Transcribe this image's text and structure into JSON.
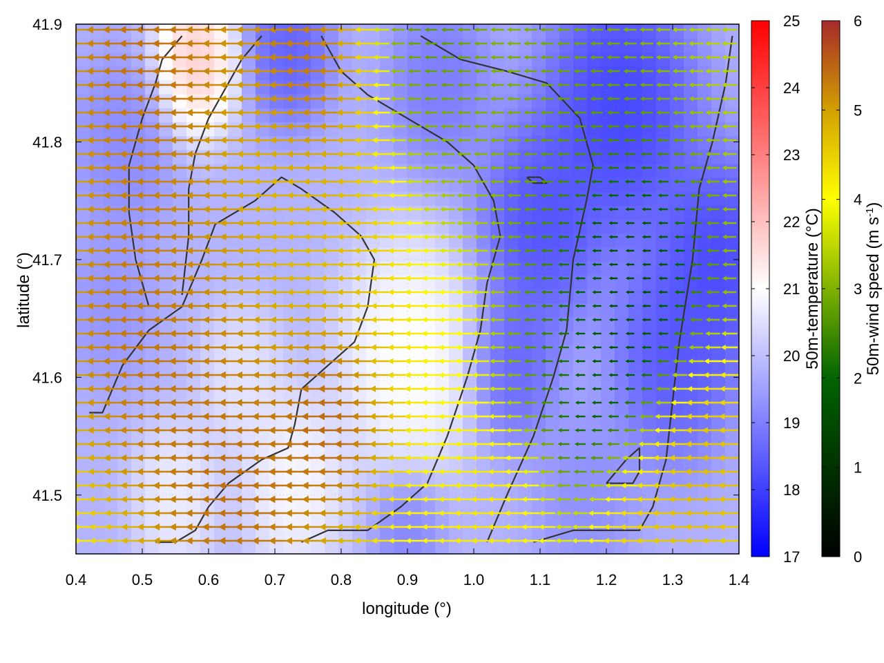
{
  "chart_data": {
    "type": "heatmap",
    "xlabel": "longitude (°)",
    "ylabel": "latitude (°)",
    "xlim": [
      0.4,
      1.4
    ],
    "ylim": [
      41.45,
      41.9
    ],
    "xticks": [
      0.4,
      0.5,
      0.6,
      0.7,
      0.8,
      0.9,
      1.0,
      1.1,
      1.2,
      1.3,
      1.4
    ],
    "xtick_labels": [
      "0.4",
      "0.5",
      "0.6",
      "0.7",
      "0.8",
      "0.9",
      "1.0",
      "1.1",
      "1.2",
      "1.3",
      "1.4"
    ],
    "yticks": [
      41.5,
      41.6,
      41.7,
      41.8,
      41.9
    ],
    "ytick_labels": [
      "41.5",
      "41.6",
      "41.7",
      "41.8",
      "41.9"
    ],
    "temperature_colorbar": {
      "label": "50m-temperature (°C)",
      "range": [
        17,
        25
      ],
      "ticks": [
        "17",
        "18",
        "19",
        "20",
        "21",
        "22",
        "23",
        "24",
        "25"
      ],
      "colors": [
        "#0000ff",
        "#ffffff",
        "#ff0000"
      ]
    },
    "wind_colorbar": {
      "label_main": "50m-wind speed (m s",
      "label_sup": "-1",
      "label_end": ")",
      "range": [
        0,
        6
      ],
      "ticks": [
        "0",
        "1",
        "2",
        "3",
        "4",
        "5",
        "6"
      ],
      "colors": [
        "#000000",
        "#006400",
        "#ffff00",
        "#d2a000",
        "#a52a2a"
      ]
    },
    "temperature_field": {
      "background": 19.8,
      "features": [
        {
          "lon": 1.22,
          "lat": 41.83,
          "t": 17.6,
          "r": 0.09
        },
        {
          "lon": 1.1,
          "lat": 41.73,
          "t": 17.9,
          "r": 0.07
        },
        {
          "lon": 1.37,
          "lat": 41.7,
          "t": 17.7,
          "r": 0.07
        },
        {
          "lon": 1.3,
          "lat": 41.62,
          "t": 18.0,
          "r": 0.07
        },
        {
          "lon": 1.06,
          "lat": 41.61,
          "t": 18.3,
          "r": 0.05
        },
        {
          "lon": 0.72,
          "lat": 41.88,
          "t": 18.2,
          "r": 0.05
        },
        {
          "lon": 0.95,
          "lat": 41.85,
          "t": 18.7,
          "r": 0.06
        },
        {
          "lon": 0.47,
          "lat": 41.8,
          "t": 19.0,
          "r": 0.06
        },
        {
          "lon": 0.45,
          "lat": 41.66,
          "t": 19.2,
          "r": 0.05
        },
        {
          "lon": 0.9,
          "lat": 41.47,
          "t": 18.9,
          "r": 0.04
        },
        {
          "lon": 1.17,
          "lat": 41.5,
          "t": 19.1,
          "r": 0.06
        },
        {
          "lon": 0.58,
          "lat": 41.87,
          "t": 22.3,
          "r": 0.05
        },
        {
          "lon": 0.9,
          "lat": 41.62,
          "t": 21.4,
          "r": 0.08
        },
        {
          "lon": 0.73,
          "lat": 41.51,
          "t": 21.2,
          "r": 0.06
        },
        {
          "lon": 0.55,
          "lat": 41.5,
          "t": 21.0,
          "r": 0.05
        },
        {
          "lon": 0.65,
          "lat": 41.6,
          "t": 20.8,
          "r": 0.05
        }
      ]
    },
    "wind_field": {
      "direction": "westward",
      "speed_regions": [
        {
          "lon": 0.52,
          "lat": 41.88,
          "speed": 5.9,
          "r": 0.14
        },
        {
          "lon": 0.76,
          "lat": 41.86,
          "speed": 5.9,
          "r": 0.08
        },
        {
          "lon": 0.5,
          "lat": 41.64,
          "speed": 5.7,
          "r": 0.12
        },
        {
          "lon": 0.8,
          "lat": 41.57,
          "speed": 5.9,
          "r": 0.07
        },
        {
          "lon": 0.65,
          "lat": 41.5,
          "speed": 5.9,
          "r": 0.13
        },
        {
          "lon": 0.62,
          "lat": 41.73,
          "speed": 4.8,
          "r": 0.1
        },
        {
          "lon": 0.82,
          "lat": 41.72,
          "speed": 4.4,
          "r": 0.09
        },
        {
          "lon": 0.7,
          "lat": 41.78,
          "speed": 4.0,
          "r": 0.07
        },
        {
          "lon": 0.94,
          "lat": 41.64,
          "speed": 3.3,
          "r": 0.08
        },
        {
          "lon": 0.95,
          "lat": 41.78,
          "speed": 2.2,
          "r": 0.08
        },
        {
          "lon": 0.92,
          "lat": 41.88,
          "speed": 1.8,
          "r": 0.08
        },
        {
          "lon": 1.15,
          "lat": 41.85,
          "speed": 2.0,
          "r": 0.1
        },
        {
          "lon": 1.12,
          "lat": 41.65,
          "speed": 2.0,
          "r": 0.08
        },
        {
          "lon": 1.22,
          "lat": 41.68,
          "speed": 0.6,
          "r": 0.1
        },
        {
          "lon": 1.2,
          "lat": 41.58,
          "speed": 1.0,
          "r": 0.08
        },
        {
          "lon": 1.34,
          "lat": 41.52,
          "speed": 4.6,
          "r": 0.08
        },
        {
          "lon": 1.25,
          "lat": 41.48,
          "speed": 4.2,
          "r": 0.07
        },
        {
          "lon": 1.02,
          "lat": 41.48,
          "speed": 3.6,
          "r": 0.08
        }
      ]
    },
    "contours": [
      [
        [
          0.42,
          41.57
        ],
        [
          0.44,
          41.57
        ],
        [
          0.47,
          41.61
        ],
        [
          0.51,
          41.64
        ],
        [
          0.56,
          41.66
        ],
        [
          0.59,
          41.7
        ],
        [
          0.61,
          41.73
        ],
        [
          0.64,
          41.74
        ],
        [
          0.67,
          41.75
        ],
        [
          0.71,
          41.77
        ],
        [
          0.74,
          41.76
        ],
        [
          0.79,
          41.74
        ],
        [
          0.83,
          41.72
        ],
        [
          0.85,
          41.7
        ],
        [
          0.84,
          41.66
        ],
        [
          0.82,
          41.63
        ],
        [
          0.8,
          41.62
        ],
        [
          0.76,
          41.6
        ],
        [
          0.74,
          41.59
        ],
        [
          0.73,
          41.56
        ],
        [
          0.72,
          41.54
        ],
        [
          0.68,
          41.53
        ],
        [
          0.63,
          41.51
        ],
        [
          0.6,
          41.49
        ],
        [
          0.58,
          41.47
        ],
        [
          0.55,
          41.46
        ],
        [
          0.52,
          41.46
        ]
      ],
      [
        [
          0.51,
          41.66
        ],
        [
          0.49,
          41.7
        ],
        [
          0.48,
          41.74
        ],
        [
          0.48,
          41.78
        ],
        [
          0.5,
          41.82
        ],
        [
          0.52,
          41.85
        ],
        [
          0.53,
          41.87
        ],
        [
          0.56,
          41.89
        ]
      ],
      [
        [
          0.56,
          41.67
        ],
        [
          0.57,
          41.72
        ],
        [
          0.57,
          41.76
        ],
        [
          0.58,
          41.79
        ],
        [
          0.6,
          41.82
        ],
        [
          0.62,
          41.84
        ],
        [
          0.65,
          41.87
        ],
        [
          0.68,
          41.89
        ]
      ],
      [
        [
          0.74,
          41.46
        ],
        [
          0.78,
          41.47
        ],
        [
          0.84,
          41.47
        ],
        [
          0.89,
          41.49
        ],
        [
          0.93,
          41.51
        ],
        [
          0.96,
          41.55
        ],
        [
          0.99,
          41.6
        ],
        [
          1.01,
          41.64
        ],
        [
          1.02,
          41.68
        ],
        [
          1.04,
          41.72
        ],
        [
          1.03,
          41.75
        ],
        [
          1.0,
          41.78
        ],
        [
          0.96,
          41.8
        ],
        [
          0.9,
          41.82
        ],
        [
          0.84,
          41.84
        ],
        [
          0.8,
          41.86
        ],
        [
          0.77,
          41.89
        ]
      ],
      [
        [
          1.02,
          41.46
        ],
        [
          1.05,
          41.5
        ],
        [
          1.09,
          41.55
        ],
        [
          1.12,
          41.6
        ],
        [
          1.14,
          41.64
        ],
        [
          1.15,
          41.7
        ],
        [
          1.17,
          41.75
        ],
        [
          1.18,
          41.78
        ],
        [
          1.16,
          41.82
        ],
        [
          1.11,
          41.85
        ],
        [
          1.05,
          41.86
        ],
        [
          0.98,
          41.87
        ],
        [
          0.92,
          41.89
        ]
      ],
      [
        [
          1.09,
          41.46
        ],
        [
          1.15,
          41.47
        ],
        [
          1.22,
          41.47
        ],
        [
          1.25,
          41.47
        ],
        [
          1.27,
          41.49
        ],
        [
          1.29,
          41.53
        ],
        [
          1.3,
          41.58
        ],
        [
          1.31,
          41.63
        ],
        [
          1.33,
          41.7
        ],
        [
          1.34,
          41.76
        ],
        [
          1.36,
          41.8
        ],
        [
          1.38,
          41.85
        ],
        [
          1.39,
          41.89
        ]
      ],
      [
        [
          1.2,
          41.51
        ],
        [
          1.24,
          41.51
        ],
        [
          1.25,
          41.52
        ],
        [
          1.25,
          41.54
        ],
        [
          1.23,
          41.53
        ],
        [
          1.2,
          41.51
        ]
      ],
      [
        [
          1.08,
          41.77
        ],
        [
          1.1,
          41.77
        ],
        [
          1.11,
          41.765
        ],
        [
          1.09,
          41.765
        ],
        [
          1.08,
          41.77
        ]
      ]
    ]
  }
}
